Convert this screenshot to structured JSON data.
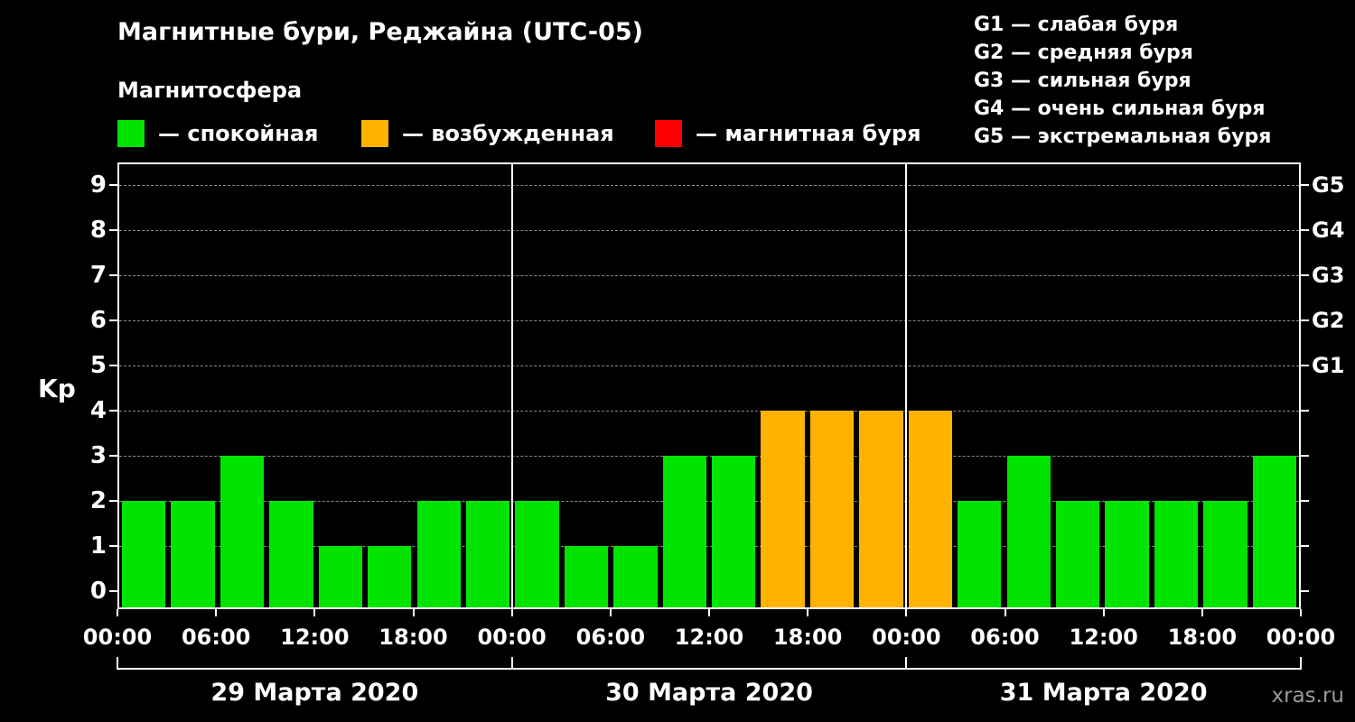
{
  "title": "Магнитные бури, Реджайна (UTC-05)",
  "subtitle": "Магнитосфера",
  "kp_axis_label": "Kp",
  "watermark": "xras.ru",
  "legend": {
    "items": [
      {
        "label": "— спокойная",
        "color": "#00e400"
      },
      {
        "label": "— возбужденная",
        "color": "#ffb300"
      },
      {
        "label": "— магнитная буря",
        "color": "#ff0000"
      }
    ]
  },
  "g_legend": [
    "G1 — слабая буря",
    "G2 — средняя буря",
    "G3 — сильная буря",
    "G4 — очень сильная буря",
    "G5 — экстремальная буря"
  ],
  "chart_data": {
    "type": "bar",
    "title": "Магнитные бури, Реджайна (UTC-05)",
    "ylabel": "Kp",
    "ylim": [
      0,
      9.5
    ],
    "yticks": [
      0,
      1,
      2,
      3,
      4,
      5,
      6,
      7,
      8,
      9
    ],
    "bar_interval_hours": 3,
    "grid": "horizontal-dashed",
    "x_tick_labels": [
      "00:00",
      "06:00",
      "12:00",
      "18:00",
      "00:00",
      "06:00",
      "12:00",
      "18:00",
      "00:00",
      "06:00",
      "12:00",
      "18:00",
      "00:00"
    ],
    "right_axis": [
      {
        "label": "G1",
        "kp": 5
      },
      {
        "label": "G2",
        "kp": 6
      },
      {
        "label": "G3",
        "kp": 7
      },
      {
        "label": "G4",
        "kp": 8
      },
      {
        "label": "G5",
        "kp": 9
      }
    ],
    "days": [
      {
        "date": "29 Марта 2020",
        "values": [
          2,
          2,
          3,
          2,
          1,
          1,
          2,
          2
        ]
      },
      {
        "date": "30 Марта 2020",
        "values": [
          2,
          1,
          1,
          3,
          3,
          4,
          4,
          4
        ]
      },
      {
        "date": "31 Марта 2020",
        "values": [
          4,
          2,
          3,
          2,
          2,
          2,
          2,
          3
        ]
      }
    ],
    "colors": {
      "quiet": "#00e400",
      "excited": "#ffb300",
      "storm": "#ff0000"
    },
    "color_rule": {
      "quiet_max": 3,
      "excited": 4,
      "storm_min": 5
    }
  }
}
